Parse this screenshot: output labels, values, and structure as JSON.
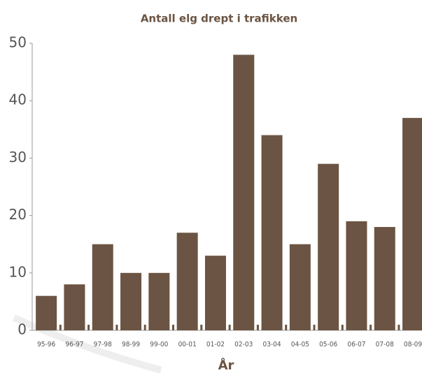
{
  "chart_data": {
    "type": "bar",
    "title": "Antall elg drept i trafikken",
    "x_label": "År",
    "categories": [
      "95-96",
      "96-97",
      "97-98",
      "98-99",
      "99-00",
      "00-01",
      "01-02",
      "02-03",
      "03-04",
      "04-05",
      "05-06",
      "06-07",
      "07-08",
      "08-09"
    ],
    "values": [
      6,
      8,
      15,
      10,
      10,
      17,
      13,
      48,
      34,
      15,
      29,
      19,
      18,
      37
    ],
    "color": "#6b5443",
    "ylim": [
      0,
      50
    ],
    "yticks": [
      0,
      10,
      20,
      30,
      40,
      50
    ],
    "grid": false
  }
}
